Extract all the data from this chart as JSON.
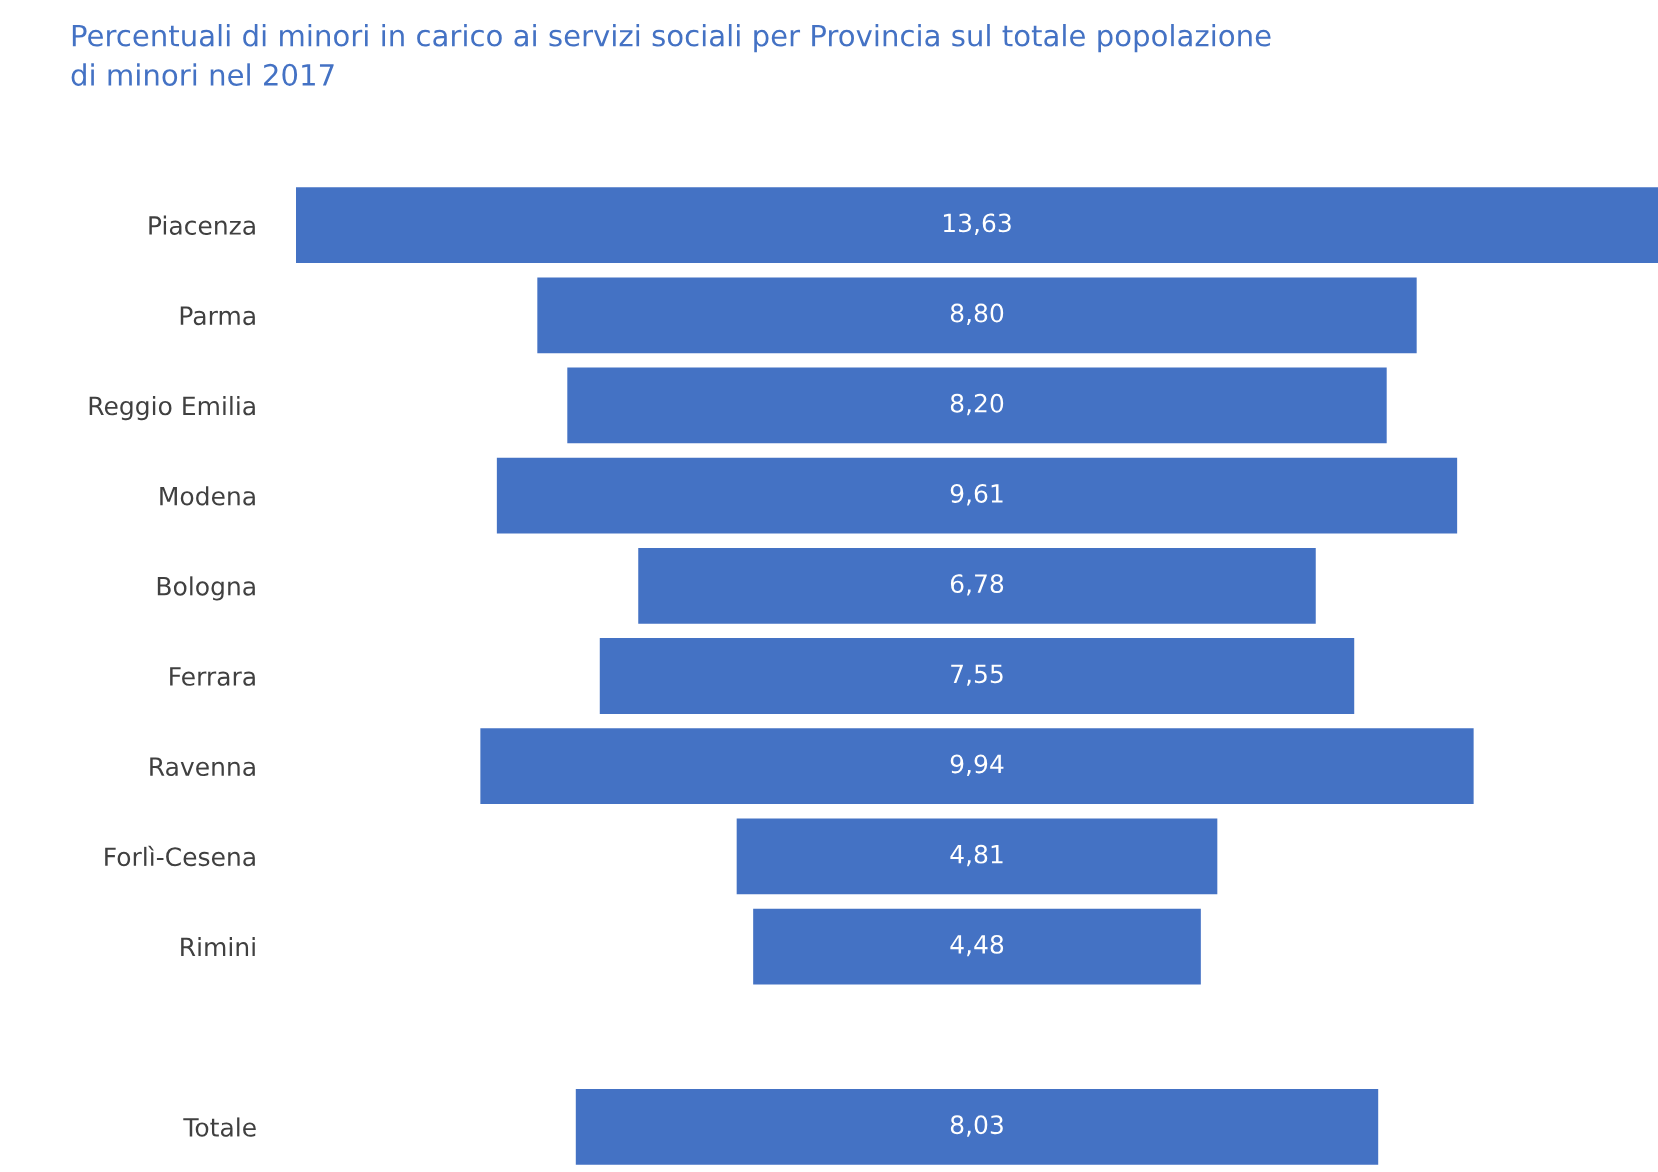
{
  "chart_data": {
    "type": "other",
    "title": "Percentuali di minori in carico ai servizi sociali per Provincia sul totale popolazione\ndi minori nel 2017",
    "categories": [
      "Piacenza",
      "Parma",
      "Reggio Emilia",
      "Modena",
      "Bologna",
      "Ferrara",
      "Ravenna",
      "Forlì-Cesena",
      "Rimini",
      null,
      "Totale"
    ],
    "values": [
      13.63,
      8.8,
      8.2,
      9.61,
      6.78,
      7.55,
      9.94,
      4.81,
      4.48,
      null,
      8.03
    ],
    "value_labels": [
      "13,63",
      "8,80",
      "8,20",
      "9,61",
      "6,78",
      "7,55",
      "9,94",
      "4,81",
      "4,48",
      null,
      "8,03"
    ],
    "color": "#4472c4"
  }
}
